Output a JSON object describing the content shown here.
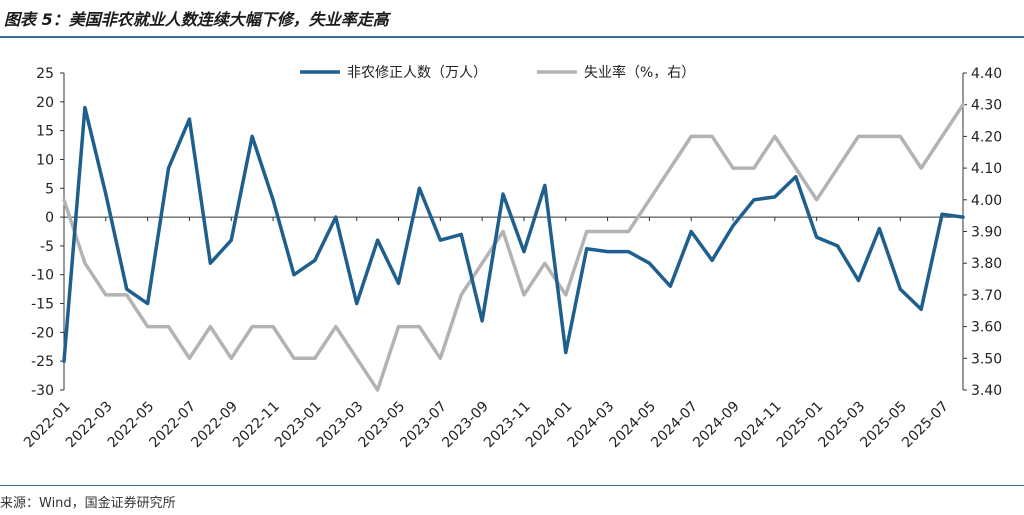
{
  "header": {
    "title": "图表 5：美国非农就业人数连续大幅下修，失业率走高"
  },
  "footer": {
    "source": "来源：Wind，国金证券研究所"
  },
  "chart_data": {
    "type": "line",
    "legend_position": "top-center",
    "series": [
      {
        "name": "非农修正人数（万人）",
        "axis": "left",
        "color": "#1f5f8e",
        "values": [
          -25,
          19,
          4,
          -12.5,
          -15,
          8.5,
          17,
          -8,
          -4,
          14,
          3,
          -10,
          -7.5,
          0,
          -15,
          -4,
          -11.5,
          5,
          -4,
          -3,
          -18,
          4,
          -6,
          5.5,
          -23.5,
          -5.5,
          -6,
          -6,
          -8,
          -12,
          -2.5,
          -7.5,
          -1.5,
          3,
          3.5,
          7,
          -3.5,
          -5,
          -11,
          -2,
          -12.5,
          -16,
          0.5,
          0
        ]
      },
      {
        "name": "失业率（%，右）",
        "axis": "right",
        "color": "#b3b3b3",
        "values": [
          4.0,
          3.8,
          3.7,
          3.7,
          3.6,
          3.6,
          3.5,
          3.6,
          3.5,
          3.6,
          3.6,
          3.5,
          3.5,
          3.6,
          3.5,
          3.4,
          3.6,
          3.6,
          3.5,
          3.7,
          3.8,
          3.9,
          3.7,
          3.8,
          3.7,
          3.9,
          3.9,
          3.9,
          4.0,
          4.1,
          4.2,
          4.2,
          4.1,
          4.1,
          4.2,
          4.1,
          4.0,
          4.1,
          4.2,
          4.2,
          4.2,
          4.1,
          4.2,
          4.3
        ]
      }
    ],
    "x_start": "2022-01",
    "x_tick_labels": [
      "2022-01",
      "2022-03",
      "2022-05",
      "2022-07",
      "2022-09",
      "2022-11",
      "2023-01",
      "2023-03",
      "2023-05",
      "2023-07",
      "2023-09",
      "2023-11",
      "2024-01",
      "2024-03",
      "2024-05",
      "2024-07",
      "2024-09",
      "2024-11",
      "2025-01",
      "2025-03",
      "2025-05",
      "2025-07"
    ],
    "y_left": {
      "ylim": [
        -30,
        25
      ],
      "ticks": [
        "25",
        "20",
        "15",
        "10",
        "5",
        "0",
        "-5",
        "-10",
        "-15",
        "-20",
        "-25",
        "-30"
      ]
    },
    "y_right": {
      "ylim": [
        3.4,
        4.4
      ],
      "ticks": [
        "4.40",
        "4.30",
        "4.20",
        "4.10",
        "4.00",
        "3.90",
        "3.80",
        "3.70",
        "3.60",
        "3.50",
        "3.40"
      ]
    },
    "grid": false
  }
}
